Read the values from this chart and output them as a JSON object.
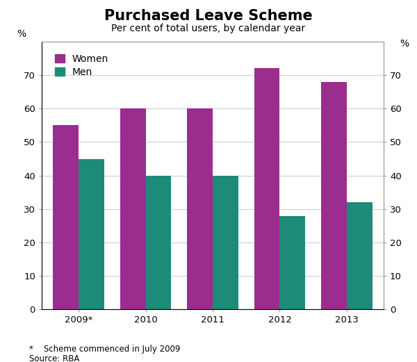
{
  "title": "Purchased Leave Scheme",
  "subtitle": "Per cent of total users, by calendar year",
  "categories": [
    "2009*",
    "2010",
    "2011",
    "2012",
    "2013"
  ],
  "women_values": [
    55,
    60,
    60,
    72,
    68
  ],
  "men_values": [
    45,
    40,
    40,
    28,
    32
  ],
  "women_color": "#9B2D8E",
  "men_color": "#1E8A78",
  "ylabel_left": "%",
  "ylabel_right": "%",
  "ylim": [
    0,
    80
  ],
  "yticks": [
    0,
    10,
    20,
    30,
    40,
    50,
    60,
    70
  ],
  "yticklabels": [
    "0",
    "10",
    "20",
    "30",
    "40",
    "50",
    "60",
    "70"
  ],
  "footnote": "*    Scheme commenced in July 2009",
  "source": "Source: RBA",
  "background_color": "#ffffff",
  "bar_width": 0.38,
  "title_fontsize": 15,
  "subtitle_fontsize": 10,
  "legend_fontsize": 10,
  "tick_fontsize": 9.5,
  "axis_label_fontsize": 10
}
